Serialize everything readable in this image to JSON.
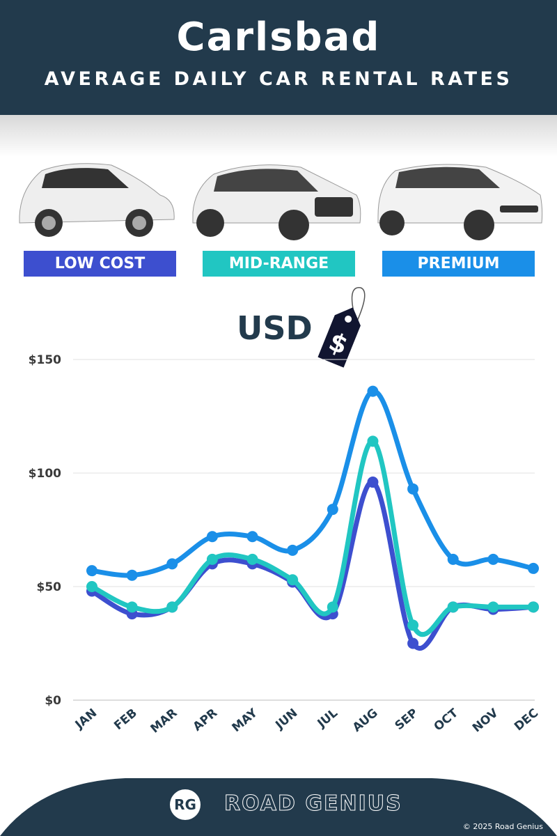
{
  "header": {
    "title": "Carlsbad",
    "subtitle": "AVERAGE DAILY CAR RENTAL RATES"
  },
  "categories": [
    {
      "label": "LOW COST",
      "color": "#3d4fcf"
    },
    {
      "label": "MID-RANGE",
      "color": "#21c6c2"
    },
    {
      "label": "PREMIUM",
      "color": "#1a8fe8"
    }
  ],
  "currency": {
    "label": "USD",
    "tag_symbol": "$"
  },
  "chart_data": {
    "type": "line",
    "categories": [
      "JAN",
      "FEB",
      "MAR",
      "APR",
      "MAY",
      "JUN",
      "JUL",
      "AUG",
      "SEP",
      "OCT",
      "NOV",
      "DEC"
    ],
    "yticks": [
      "$0",
      "$50",
      "$100",
      "$150"
    ],
    "ylim": [
      0,
      150
    ],
    "grid": true,
    "series": [
      {
        "name": "PREMIUM",
        "color": "#1a8fe8",
        "values": [
          57,
          55,
          60,
          72,
          72,
          66,
          84,
          136,
          93,
          62,
          62,
          58
        ]
      },
      {
        "name": "LOW COST",
        "color": "#3d4fcf",
        "values": [
          48,
          38,
          41,
          60,
          60,
          52,
          38,
          96,
          25,
          41,
          40,
          41
        ]
      },
      {
        "name": "MID-RANGE",
        "color": "#21c6c2",
        "values": [
          50,
          41,
          41,
          62,
          62,
          53,
          41,
          114,
          33,
          41,
          41,
          41
        ]
      }
    ]
  },
  "footer": {
    "logo": "RG",
    "brand": "ROAD GENIUS",
    "copyright": "© 2025 Road Genius"
  }
}
